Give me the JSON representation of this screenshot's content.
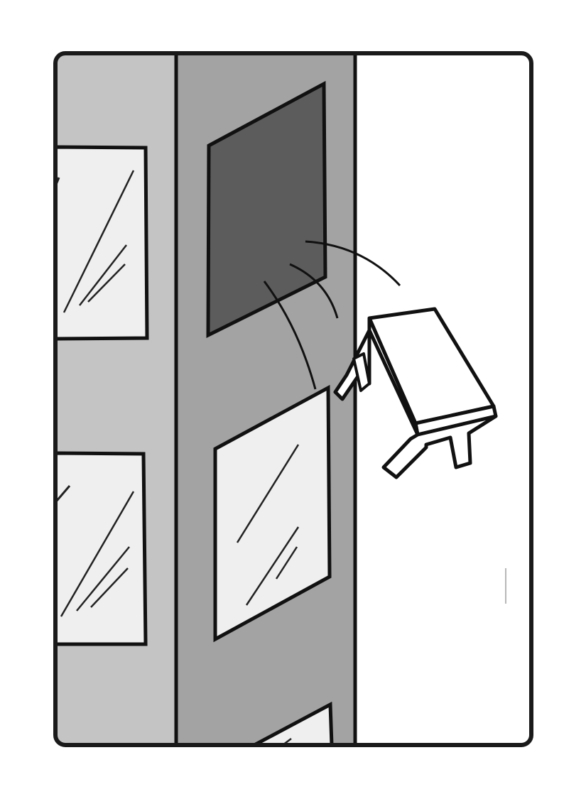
{
  "panel": {
    "frame_color": "#1a1a1a",
    "sky_color": "#ffffff"
  },
  "building": {
    "side_wall_color": "#c4c4c4",
    "front_wall_color": "#a3a3a3",
    "outline_color": "#111111"
  },
  "windows": {
    "glass_color": "#efefef",
    "glint_color": "#222222",
    "open_window_color": "#5c5c5c",
    "items": [
      {
        "state": "intact"
      },
      {
        "state": "intact"
      },
      {
        "state": "open-dark"
      },
      {
        "state": "intact"
      },
      {
        "state": "intact"
      }
    ]
  },
  "chair": {
    "color": "#ffffff",
    "state": "flying-out",
    "icon": "chair-icon"
  },
  "motion_lines": {
    "count": 4
  }
}
